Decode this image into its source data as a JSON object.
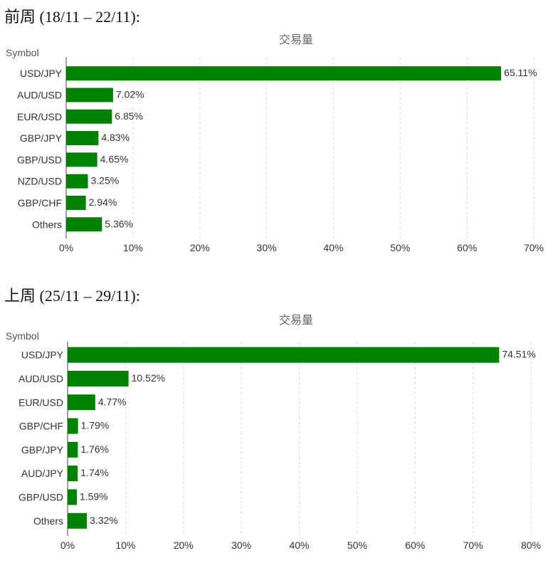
{
  "sections": [
    {
      "heading": "前周 (18/11 – 22/11):",
      "symbol_label": "Symbol",
      "chart_title": "交易量"
    },
    {
      "heading": "上周 (25/11 – 29/11):",
      "symbol_label": "Symbol",
      "chart_title": "交易量"
    }
  ],
  "colors": {
    "bar": "#008000",
    "grid": "#d9d9d9",
    "axis": "#444444",
    "label": "#333333"
  },
  "chart_data": [
    {
      "type": "bar",
      "orientation": "horizontal",
      "title": "交易量",
      "ylabel": "Symbol",
      "categories": [
        "USD/JPY",
        "AUD/USD",
        "EUR/USD",
        "GBP/JPY",
        "GBP/USD",
        "NZD/USD",
        "GBP/CHF",
        "Others"
      ],
      "values": [
        65.11,
        7.02,
        6.85,
        4.83,
        4.65,
        3.25,
        2.94,
        5.36
      ],
      "data_labels": [
        "65.11%",
        "7.02%",
        "6.85%",
        "4.83%",
        "4.65%",
        "3.25%",
        "2.94%",
        "5.36%"
      ],
      "xlim": [
        0,
        70
      ],
      "xticks": [
        0,
        10,
        20,
        30,
        40,
        50,
        60,
        70
      ],
      "xtick_labels": [
        "0%",
        "10%",
        "20%",
        "30%",
        "40%",
        "50%",
        "60%",
        "70%"
      ],
      "grid": true
    },
    {
      "type": "bar",
      "orientation": "horizontal",
      "title": "交易量",
      "ylabel": "Symbol",
      "categories": [
        "USD/JPY",
        "AUD/USD",
        "EUR/USD",
        "GBP/CHF",
        "GBP/JPY",
        "AUD/JPY",
        "GBP/USD",
        "Others"
      ],
      "values": [
        74.51,
        10.52,
        4.77,
        1.79,
        1.76,
        1.74,
        1.59,
        3.32
      ],
      "data_labels": [
        "74.51%",
        "10.52%",
        "4.77%",
        "1.79%",
        "1.76%",
        "1.74%",
        "1.59%",
        "3.32%"
      ],
      "xlim": [
        0,
        80
      ],
      "xticks": [
        0,
        10,
        20,
        30,
        40,
        50,
        60,
        70,
        80
      ],
      "xtick_labels": [
        "0%",
        "10%",
        "20%",
        "30%",
        "40%",
        "50%",
        "60%",
        "70%",
        "80%"
      ],
      "grid": true
    }
  ]
}
